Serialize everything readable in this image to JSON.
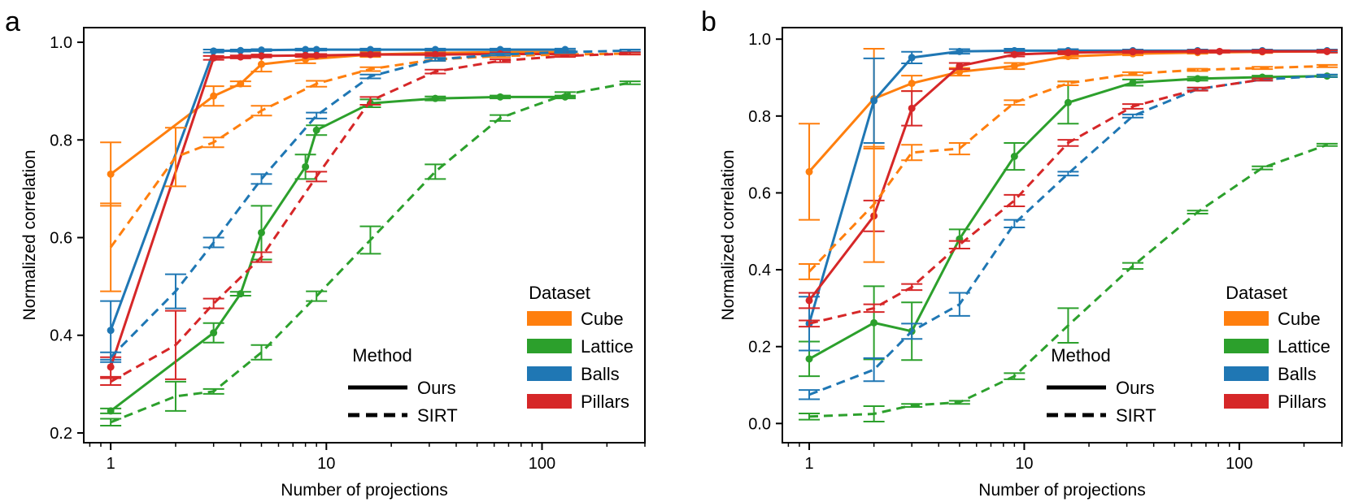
{
  "colors": {
    "cube": "#ff7f0e",
    "lattice": "#2ca02c",
    "balls": "#1f77b4",
    "pillars": "#d62728",
    "axis": "#000000",
    "background": "#ffffff"
  },
  "chart_data": [
    {
      "panel_label": "a",
      "type": "line",
      "xscale": "log",
      "xlabel": "Number of projections",
      "ylabel": "Normalized correlation",
      "xlim": [
        0.75,
        300
      ],
      "ylim": [
        0.18,
        1.03
      ],
      "xticks": [
        1,
        10,
        100
      ],
      "xtick_labels": [
        "1",
        "10",
        "100"
      ],
      "yticks": [
        0.2,
        0.4,
        0.6,
        0.8,
        1.0
      ],
      "ytick_labels": [
        "0.2",
        "0.4",
        "0.6",
        "0.8",
        "1.0"
      ],
      "legend_dataset": {
        "title": "Dataset",
        "placement": "bottom-right",
        "entries": [
          {
            "label": "Cube",
            "color_key": "cube"
          },
          {
            "label": "Lattice",
            "color_key": "lattice"
          },
          {
            "label": "Balls",
            "color_key": "balls"
          },
          {
            "label": "Pillars",
            "color_key": "pillars"
          }
        ]
      },
      "legend_method": {
        "title": "Method",
        "placement": "bottom-center",
        "entries": [
          {
            "label": "Ours",
            "style": "solid"
          },
          {
            "label": "SIRT",
            "style": "dashed"
          }
        ]
      },
      "series": [
        {
          "name": "Cube",
          "method": "Ours",
          "color_key": "cube",
          "x": [
            1,
            3,
            4,
            5,
            8,
            16,
            32,
            64,
            128
          ],
          "y": [
            0.73,
            0.89,
            0.915,
            0.955,
            0.965,
            0.975,
            0.978,
            0.98,
            0.98
          ],
          "err": [
            0.065,
            0.02,
            0.005,
            0.015,
            0.008,
            0.005,
            0.004,
            0.003,
            0.003
          ],
          "markers": true
        },
        {
          "name": "Lattice",
          "method": "Ours",
          "color_key": "lattice",
          "x": [
            1,
            3,
            4,
            5,
            8,
            9,
            16,
            32,
            64,
            128
          ],
          "y": [
            0.245,
            0.405,
            0.485,
            0.61,
            0.745,
            0.82,
            0.875,
            0.885,
            0.888,
            0.888
          ],
          "err": [
            0.005,
            0.02,
            0.004,
            0.055,
            0.025,
            0.01,
            0.008,
            0.004,
            0.003,
            0.003
          ],
          "markers": true
        },
        {
          "name": "Balls",
          "method": "Ours",
          "color_key": "balls",
          "x": [
            1,
            3,
            4,
            5,
            8,
            9,
            16,
            32,
            64,
            128
          ],
          "y": [
            0.41,
            0.982,
            0.983,
            0.984,
            0.985,
            0.985,
            0.985,
            0.985,
            0.985,
            0.985
          ],
          "err": [
            0.06,
            0.003,
            0.002,
            0.002,
            0.002,
            0.002,
            0.002,
            0.002,
            0.002,
            0.002
          ],
          "markers": true
        },
        {
          "name": "Pillars",
          "method": "Ours",
          "color_key": "pillars",
          "x": [
            1,
            3,
            4,
            5,
            8,
            9,
            16,
            32,
            64,
            128
          ],
          "y": [
            0.335,
            0.968,
            0.97,
            0.972,
            0.973,
            0.973,
            0.975,
            0.975,
            0.976,
            0.976
          ],
          "err": [
            0.02,
            0.004,
            0.003,
            0.003,
            0.003,
            0.003,
            0.003,
            0.003,
            0.003,
            0.003
          ],
          "markers": true
        },
        {
          "name": "Cube",
          "method": "SIRT",
          "color_key": "cube",
          "x": [
            1,
            2,
            3,
            5,
            9,
            16,
            32,
            64,
            128,
            256
          ],
          "y": [
            0.58,
            0.765,
            0.795,
            0.86,
            0.915,
            0.945,
            0.965,
            0.972,
            0.975,
            0.977
          ],
          "err": [
            0.09,
            0.06,
            0.01,
            0.01,
            0.006,
            0.004,
            0.003,
            0.003,
            0.002,
            0.002
          ],
          "markers": false
        },
        {
          "name": "Lattice",
          "method": "SIRT",
          "color_key": "lattice",
          "x": [
            1,
            2,
            3,
            5,
            9,
            16,
            32,
            64,
            128,
            256
          ],
          "y": [
            0.222,
            0.275,
            0.285,
            0.365,
            0.48,
            0.595,
            0.735,
            0.845,
            0.893,
            0.917
          ],
          "err": [
            0.007,
            0.03,
            0.005,
            0.015,
            0.01,
            0.028,
            0.015,
            0.006,
            0.005,
            0.003
          ],
          "markers": false
        },
        {
          "name": "Balls",
          "method": "SIRT",
          "color_key": "balls",
          "x": [
            1,
            2,
            3,
            5,
            9,
            16,
            32,
            64,
            128,
            256
          ],
          "y": [
            0.355,
            0.49,
            0.59,
            0.72,
            0.85,
            0.93,
            0.965,
            0.975,
            0.98,
            0.983
          ],
          "err": [
            0.01,
            0.035,
            0.01,
            0.01,
            0.006,
            0.004,
            0.003,
            0.002,
            0.002,
            0.002
          ],
          "markers": false
        },
        {
          "name": "Pillars",
          "method": "SIRT",
          "color_key": "pillars",
          "x": [
            1,
            2,
            3,
            5,
            9,
            16,
            32,
            64,
            128,
            256
          ],
          "y": [
            0.305,
            0.38,
            0.465,
            0.56,
            0.725,
            0.88,
            0.94,
            0.962,
            0.972,
            0.977
          ],
          "err": [
            0.007,
            0.07,
            0.01,
            0.01,
            0.01,
            0.008,
            0.004,
            0.003,
            0.002,
            0.002
          ],
          "markers": false
        }
      ]
    },
    {
      "panel_label": "b",
      "type": "line",
      "xscale": "log",
      "xlabel": "Number of projections",
      "ylabel": "Normalized correlation",
      "xlim": [
        0.75,
        300
      ],
      "ylim": [
        -0.05,
        1.03
      ],
      "xticks": [
        1,
        10,
        100
      ],
      "xtick_labels": [
        "1",
        "10",
        "100"
      ],
      "yticks": [
        0.0,
        0.2,
        0.4,
        0.6,
        0.8,
        1.0
      ],
      "ytick_labels": [
        "0.0",
        "0.2",
        "0.4",
        "0.6",
        "0.8",
        "1.0"
      ],
      "legend_dataset": {
        "title": "Dataset",
        "placement": "bottom-right",
        "entries": [
          {
            "label": "Cube",
            "color_key": "cube"
          },
          {
            "label": "Lattice",
            "color_key": "lattice"
          },
          {
            "label": "Balls",
            "color_key": "balls"
          },
          {
            "label": "Pillars",
            "color_key": "pillars"
          }
        ]
      },
      "legend_method": {
        "title": "Method",
        "placement": "bottom-center",
        "entries": [
          {
            "label": "Ours",
            "style": "solid"
          },
          {
            "label": "SIRT",
            "style": "dashed"
          }
        ]
      },
      "series": [
        {
          "name": "Cube",
          "method": "Ours",
          "color_key": "cube",
          "x": [
            1,
            2,
            3,
            5,
            9,
            16,
            32,
            64,
            128,
            256
          ],
          "y": [
            0.655,
            0.845,
            0.885,
            0.915,
            0.93,
            0.955,
            0.962,
            0.965,
            0.967,
            0.968
          ],
          "err": [
            0.125,
            0.13,
            0.02,
            0.01,
            0.008,
            0.005,
            0.004,
            0.003,
            0.003,
            0.003
          ],
          "markers": true
        },
        {
          "name": "Lattice",
          "method": "Ours",
          "color_key": "lattice",
          "x": [
            1,
            2,
            3,
            5,
            9,
            16,
            32,
            64,
            128,
            256
          ],
          "y": [
            0.168,
            0.262,
            0.24,
            0.48,
            0.695,
            0.835,
            0.887,
            0.897,
            0.901,
            0.904
          ],
          "err": [
            0.045,
            0.095,
            0.075,
            0.025,
            0.035,
            0.055,
            0.008,
            0.005,
            0.004,
            0.003
          ],
          "markers": true
        },
        {
          "name": "Balls",
          "method": "Ours",
          "color_key": "balls",
          "x": [
            1,
            2,
            3,
            5,
            9,
            16,
            32,
            64,
            128,
            256
          ],
          "y": [
            0.26,
            0.84,
            0.952,
            0.968,
            0.97,
            0.97,
            0.97,
            0.97,
            0.97,
            0.97
          ],
          "err": [
            0.07,
            0.11,
            0.015,
            0.006,
            0.005,
            0.004,
            0.003,
            0.003,
            0.003,
            0.003
          ],
          "markers": true
        },
        {
          "name": "Pillars",
          "method": "Ours",
          "color_key": "pillars",
          "x": [
            1,
            2,
            3,
            5,
            9,
            16,
            32,
            64,
            81,
            128,
            256
          ],
          "y": [
            0.32,
            0.54,
            0.82,
            0.93,
            0.96,
            0.965,
            0.967,
            0.968,
            0.968,
            0.968,
            0.968
          ],
          "err": [
            0.02,
            0.04,
            0.045,
            0.008,
            0.005,
            0.004,
            0.003,
            0.003,
            0.003,
            0.003,
            0.003
          ],
          "markers": true
        },
        {
          "name": "Cube",
          "method": "SIRT",
          "color_key": "cube",
          "x": [
            1,
            2,
            3,
            5,
            9,
            16,
            32,
            64,
            128,
            256
          ],
          "y": [
            0.395,
            0.57,
            0.705,
            0.715,
            0.835,
            0.885,
            0.91,
            0.92,
            0.925,
            0.93
          ],
          "err": [
            0.02,
            0.15,
            0.02,
            0.015,
            0.006,
            0.005,
            0.004,
            0.003,
            0.003,
            0.003
          ],
          "markers": false
        },
        {
          "name": "Lattice",
          "method": "SIRT",
          "color_key": "lattice",
          "x": [
            1,
            2,
            3,
            5,
            9,
            16,
            32,
            64,
            128,
            256
          ],
          "y": [
            0.018,
            0.025,
            0.047,
            0.055,
            0.123,
            0.255,
            0.41,
            0.55,
            0.665,
            0.725
          ],
          "err": [
            0.008,
            0.02,
            0.004,
            0.004,
            0.008,
            0.045,
            0.008,
            0.004,
            0.004,
            0.003
          ],
          "markers": false
        },
        {
          "name": "Balls",
          "method": "SIRT",
          "color_key": "balls",
          "x": [
            1,
            2,
            3,
            5,
            9,
            16,
            32,
            64,
            128,
            256
          ],
          "y": [
            0.075,
            0.14,
            0.24,
            0.31,
            0.52,
            0.65,
            0.8,
            0.87,
            0.895,
            0.905
          ],
          "err": [
            0.012,
            0.03,
            0.02,
            0.03,
            0.01,
            0.005,
            0.004,
            0.003,
            0.003,
            0.003
          ],
          "markers": false
        },
        {
          "name": "Pillars",
          "method": "SIRT",
          "color_key": "pillars",
          "x": [
            1,
            2,
            3,
            5,
            9,
            16,
            32,
            64,
            128
          ],
          "y": [
            0.26,
            0.3,
            0.355,
            0.465,
            0.58,
            0.73,
            0.825,
            0.87,
            0.895
          ],
          "err": [
            0.008,
            0.01,
            0.008,
            0.01,
            0.015,
            0.008,
            0.006,
            0.004,
            0.003
          ],
          "markers": false
        }
      ]
    }
  ]
}
